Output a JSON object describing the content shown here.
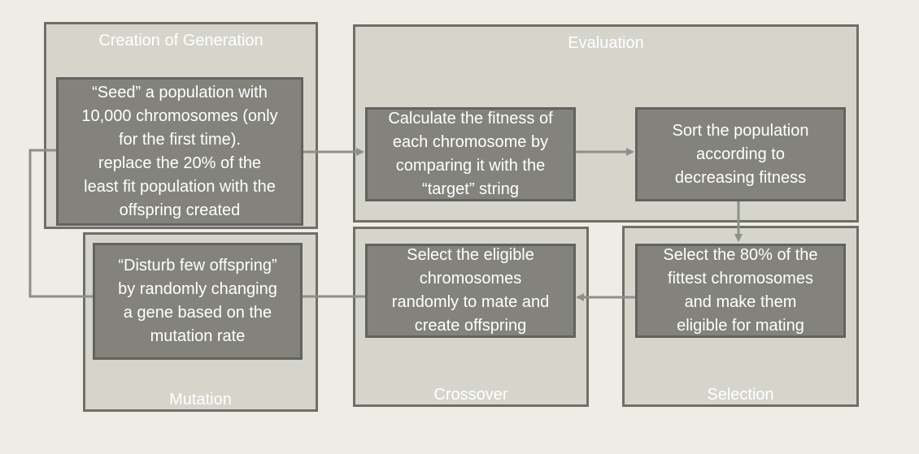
{
  "stages": {
    "creation": {
      "title": "Creation of Generation",
      "text": "“Seed” a population with\n10,000 chromosomes (only\nfor the first time).\nreplace the 20% of the\nleast fit population with the\noffspring created"
    },
    "evaluation": {
      "title": "Evaluation",
      "fitness_text": "Calculate the fitness of\neach chromosome by\ncomparing it with the\n“target” string",
      "sort_text": "Sort the population\naccording to\ndecreasing fitness"
    },
    "selection": {
      "title": "Selection",
      "text": "Select the 80% of the\nfittest chromosomes\nand make them\neligible for mating"
    },
    "crossover": {
      "title": "Crossover",
      "text": "Select the eligible\nchromosomes\nrandomly to mate and\ncreate offspring"
    },
    "mutation": {
      "title": "Mutation",
      "text": "“Disturb few offspring”\nby randomly changing\na gene based on the\nmutation rate"
    }
  },
  "colors": {
    "background": "#eeece5",
    "panel_fill": "#d6d5cc",
    "panel_border": "#6f6f6a",
    "box_fill": "#83837c",
    "box_border": "#626260",
    "connector": "#8f8f8a",
    "text": "#ffffff"
  }
}
